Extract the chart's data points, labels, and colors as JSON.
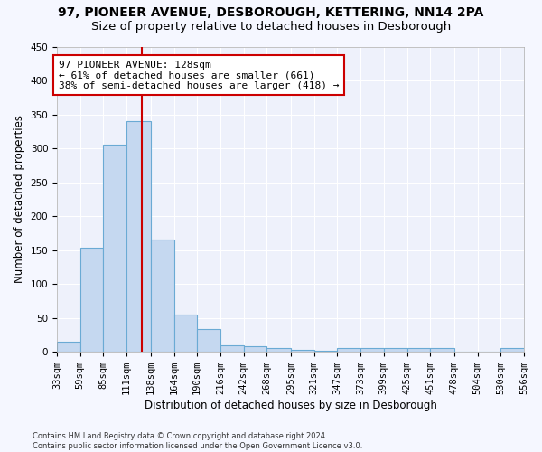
{
  "title1": "97, PIONEER AVENUE, DESBOROUGH, KETTERING, NN14 2PA",
  "title2": "Size of property relative to detached houses in Desborough",
  "xlabel": "Distribution of detached houses by size in Desborough",
  "ylabel": "Number of detached properties",
  "footnote": "Contains HM Land Registry data © Crown copyright and database right 2024.\nContains public sector information licensed under the Open Government Licence v3.0.",
  "bin_edges": [
    33,
    59,
    85,
    111,
    138,
    164,
    190,
    216,
    242,
    268,
    295,
    321,
    347,
    373,
    399,
    425,
    451,
    478,
    504,
    530,
    556
  ],
  "bar_heights": [
    15,
    153,
    305,
    340,
    165,
    55,
    33,
    10,
    8,
    5,
    3,
    2,
    5,
    5,
    5,
    5,
    5,
    0,
    0,
    5
  ],
  "bar_color": "#c5d8f0",
  "bar_edge_color": "#6aaad4",
  "property_size": 128,
  "vline_color": "#cc0000",
  "annotation_text": "97 PIONEER AVENUE: 128sqm\n← 61% of detached houses are smaller (661)\n38% of semi-detached houses are larger (418) →",
  "annotation_box_color": "white",
  "annotation_box_edge": "#cc0000",
  "ylim": [
    0,
    450
  ],
  "yticks": [
    0,
    50,
    100,
    150,
    200,
    250,
    300,
    350,
    400,
    450
  ],
  "bg_color": "#f5f7ff",
  "axes_bg_color": "#eef1fb",
  "grid_color": "white",
  "title1_fontsize": 10,
  "title2_fontsize": 9.5,
  "xlabel_fontsize": 8.5,
  "ylabel_fontsize": 8.5,
  "tick_fontsize": 7.5,
  "annotation_fontsize": 8
}
